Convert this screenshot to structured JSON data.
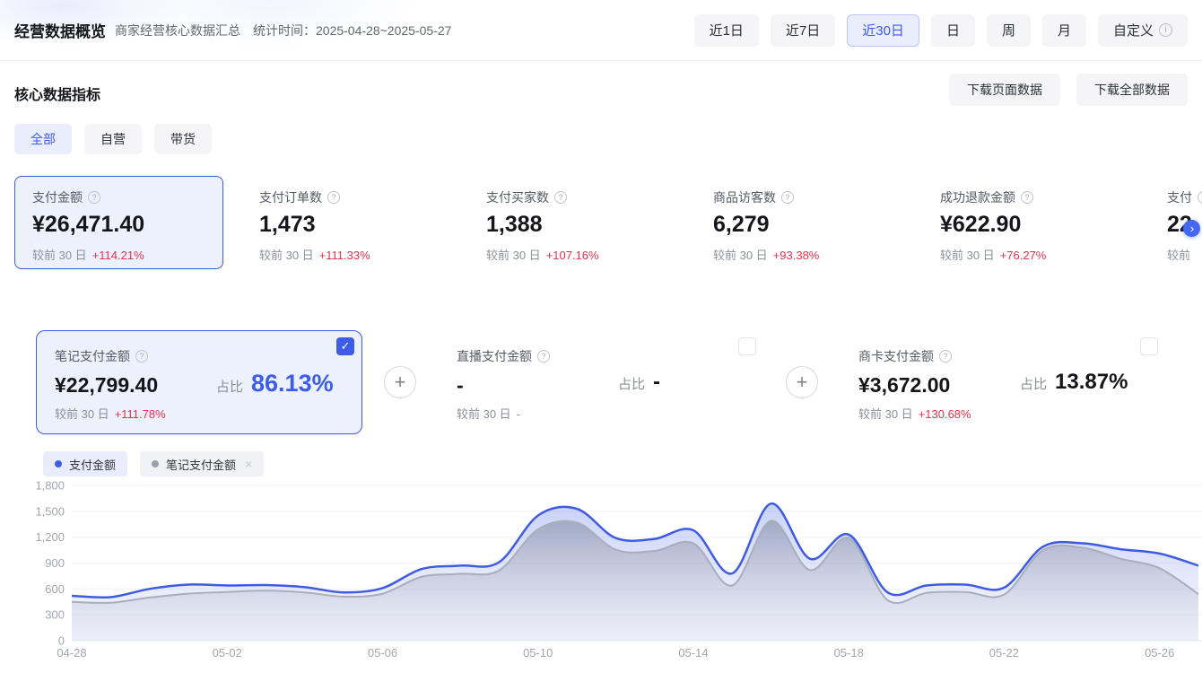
{
  "header": {
    "title": "经营数据概览",
    "subtitle": "商家经营核心数据汇总",
    "stat_time": "统计时间：2025-04-28~2025-05-27",
    "ranges": [
      {
        "label": "近1日",
        "active": false,
        "has_info": false
      },
      {
        "label": "近7日",
        "active": false,
        "has_info": false
      },
      {
        "label": "近30日",
        "active": true,
        "has_info": false
      },
      {
        "label": "日",
        "active": false,
        "has_info": false
      },
      {
        "label": "周",
        "active": false,
        "has_info": false
      },
      {
        "label": "月",
        "active": false,
        "has_info": false
      },
      {
        "label": "自定义",
        "active": false,
        "has_info": true
      }
    ]
  },
  "toolbar": {
    "section_title": "核心数据指标",
    "download_page": "下载页面数据",
    "download_all": "下载全部数据"
  },
  "tabs": [
    {
      "label": "全部",
      "active": true
    },
    {
      "label": "自营",
      "active": false
    },
    {
      "label": "带货",
      "active": false
    }
  ],
  "metric_cards": [
    {
      "label": "支付金额",
      "value": "¥26,471.40",
      "delta_label": "较前 30 日",
      "delta": "+114.21%",
      "delta_red": true,
      "selected": true
    },
    {
      "label": "支付订单数",
      "value": "1,473",
      "delta_label": "较前 30 日",
      "delta": "+111.33%",
      "delta_red": true,
      "selected": false
    },
    {
      "label": "支付买家数",
      "value": "1,388",
      "delta_label": "较前 30 日",
      "delta": "+107.16%",
      "delta_red": true,
      "selected": false
    },
    {
      "label": "商品访客数",
      "value": "6,279",
      "delta_label": "较前 30 日",
      "delta": "+93.38%",
      "delta_red": true,
      "selected": false
    },
    {
      "label": "成功退款金额",
      "value": "¥622.90",
      "delta_label": "较前 30 日",
      "delta": "+76.27%",
      "delta_red": true,
      "selected": false
    },
    {
      "label": "支付",
      "value": "22",
      "delta_label": "较前",
      "delta": "",
      "delta_red": false,
      "selected": false
    }
  ],
  "sub_cards": [
    {
      "label": "笔记支付金额",
      "value": "¥22,799.40",
      "share_label": "占比",
      "share": "86.13%",
      "delta_label": "较前 30 日",
      "delta": "+111.78%",
      "delta_red": true,
      "checked": true,
      "selected": true
    },
    {
      "label": "直播支付金额",
      "value": "-",
      "share_label": "占比",
      "share": "-",
      "delta_label": "较前 30 日",
      "delta": "-",
      "delta_red": false,
      "checked": false,
      "selected": false
    },
    {
      "label": "商卡支付金额",
      "value": "¥3,672.00",
      "share_label": "占比",
      "share": "13.87%",
      "delta_label": "较前 30 日",
      "delta": "+130.68%",
      "delta_red": true,
      "checked": false,
      "selected": false
    }
  ],
  "legend": [
    {
      "label": "支付金额",
      "color": "#3d5ce8",
      "closable": false,
      "primary": true
    },
    {
      "label": "笔记支付金额",
      "color": "#9aa0ad",
      "closable": true,
      "primary": false
    }
  ],
  "icons": {
    "help": "?",
    "info": "i",
    "close": "×",
    "plus": "+",
    "check": "✓",
    "chevron_right": "›"
  },
  "colors": {
    "accent_blue": "#3d5ce8",
    "delta_red": "#e8314e",
    "gray_line": "#a9aebb"
  },
  "chart_data": {
    "type": "area",
    "x": [
      "04-28",
      "04-29",
      "04-30",
      "05-01",
      "05-02",
      "05-03",
      "05-04",
      "05-05",
      "05-06",
      "05-07",
      "05-08",
      "05-09",
      "05-10",
      "05-11",
      "05-12",
      "05-13",
      "05-14",
      "05-15",
      "05-16",
      "05-17",
      "05-18",
      "05-19",
      "05-20",
      "05-21",
      "05-22",
      "05-23",
      "05-24",
      "05-25",
      "05-26",
      "05-27"
    ],
    "x_tick_labels": [
      "04-28",
      "05-02",
      "05-06",
      "05-10",
      "05-14",
      "05-18",
      "05-22",
      "05-26"
    ],
    "series": [
      {
        "name": "支付金额",
        "color": "#3f5be4",
        "values": [
          520,
          505,
          600,
          650,
          640,
          645,
          620,
          560,
          610,
          830,
          870,
          910,
          1450,
          1530,
          1190,
          1180,
          1280,
          780,
          1590,
          950,
          1230,
          560,
          640,
          650,
          615,
          1090,
          1130,
          1060,
          1010,
          870
        ]
      },
      {
        "name": "笔记支付金额",
        "color": "#a9aebb",
        "values": [
          450,
          440,
          500,
          545,
          565,
          580,
          560,
          510,
          545,
          740,
          775,
          815,
          1290,
          1370,
          1055,
          1040,
          1130,
          640,
          1390,
          820,
          1190,
          470,
          555,
          565,
          535,
          1050,
          1080,
          950,
          840,
          540
        ]
      }
    ],
    "ylim": [
      0,
      1800
    ],
    "yticks": [
      0,
      300,
      600,
      900,
      1200,
      1500,
      1800
    ],
    "ytick_labels": [
      "0",
      "300",
      "600",
      "900",
      "1,200",
      "1,500",
      "1,800"
    ],
    "grid": true,
    "legend_position": "top-left",
    "title": "",
    "xlabel": "",
    "ylabel": ""
  }
}
